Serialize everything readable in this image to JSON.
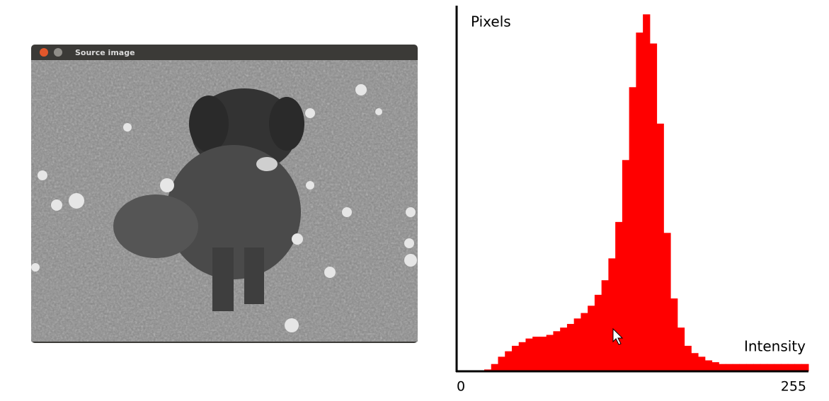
{
  "window": {
    "title": "Source image"
  },
  "chart_data": {
    "type": "histogram",
    "y_label": "Pixels",
    "x_label": "Intensity",
    "color": "#ff0000",
    "bins": [
      0,
      5,
      10,
      15,
      20,
      25,
      30,
      35,
      40,
      45,
      50,
      55,
      60,
      65,
      70,
      75,
      80,
      85,
      90,
      95,
      100,
      105,
      110,
      115,
      120,
      125,
      130,
      135,
      140,
      145,
      150,
      155,
      160,
      165,
      170,
      175,
      180,
      185,
      190,
      195,
      200,
      205,
      210,
      215,
      220,
      225,
      230,
      235,
      240,
      245,
      250,
      255
    ],
    "values": [
      0,
      0,
      0,
      0,
      0.5,
      2,
      4,
      5.5,
      7,
      8,
      9,
      9.5,
      9.5,
      10,
      11,
      12,
      13,
      14.5,
      16,
      18,
      21,
      25,
      31,
      41,
      58,
      78,
      93,
      98,
      90,
      68,
      38,
      20,
      12,
      7,
      5,
      4,
      3,
      2.5,
      2,
      2,
      2,
      2,
      2,
      2,
      2,
      2,
      2,
      2,
      2,
      2,
      2
    ],
    "xlim": [
      0,
      255
    ],
    "ylim": [
      0,
      100
    ],
    "xticks": [
      0,
      255
    ]
  }
}
